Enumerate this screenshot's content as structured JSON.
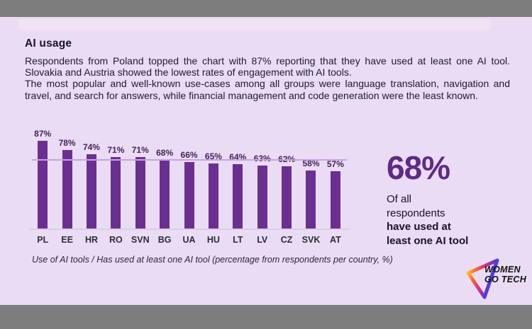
{
  "slide": {
    "title": "AI usage",
    "paragraph1": "Respondents from Poland topped the chart with 87% reporting that they have used at least one AI tool. Slovakia and Austria showed the lowest rates of engagement with AI tools.",
    "paragraph2": "The most popular and well-known use-cases among all groups were language translation, navigation and travel, and search for answers, while financial management and code generation were the least known."
  },
  "chart_data": {
    "type": "bar",
    "categories": [
      "PL",
      "EE",
      "HR",
      "RO",
      "SVN",
      "BG",
      "UA",
      "HU",
      "LT",
      "LV",
      "CZ",
      "SVK",
      "AT"
    ],
    "values": [
      87,
      78,
      74,
      71,
      71,
      68,
      66,
      65,
      64,
      63,
      62,
      58,
      57
    ],
    "value_labels": [
      "87%",
      "78%",
      "74%",
      "71%",
      "71%",
      "68%",
      "66%",
      "65%",
      "64%",
      "63%",
      "62%",
      "58%",
      "57%"
    ],
    "reference_line_value": 68,
    "ylim": [
      0,
      100
    ],
    "grid": "off",
    "legend": "none",
    "caption": "Use of AI tools / Has used at least one AI tool (percentage from respondents per country, %)",
    "bar_color": "#6b2f92",
    "reference_line_color": "#c7a3e0",
    "value_label_color": "#432459"
  },
  "stat": {
    "value": "68%",
    "line1": "Of all",
    "line2": "respondents",
    "line3": "have used at",
    "line4": "least one AI tool",
    "accent_color": "#5f2b84"
  },
  "logo": {
    "line1": "WOMEN",
    "line2": "GO TECH",
    "gradient": [
      "#ffc42f",
      "#f86b28",
      "#e93a6f",
      "#b62ba0",
      "#4f3cd6"
    ]
  },
  "colors": {
    "background": "#e9dcf4",
    "letterbox": "#7d7d7d",
    "top_strip": "#f1e3f3",
    "text": "#201a30"
  }
}
